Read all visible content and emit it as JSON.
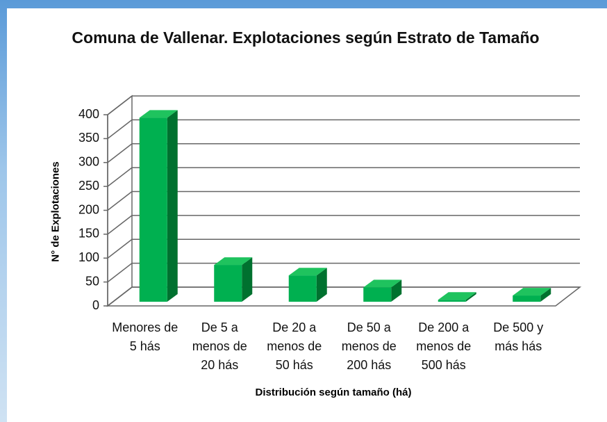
{
  "chart_data": {
    "type": "bar3d",
    "title": "Comuna de Vallenar. Explotaciones según Estrato de Tamaño",
    "x_label": "Distribución según tamaño (há)",
    "y_label": "N° de Explotaciones",
    "categories": [
      "Menores de 5 hás",
      "De 5 a menos de 20 hás",
      "De 20 a menos de 50 hás",
      "De 50 a menos de 200 hás",
      "De 200 a menos de 500 hás",
      "De 500 y más hás"
    ],
    "values": [
      385,
      77,
      55,
      30,
      4,
      13
    ],
    "color": "#00b050",
    "ylim": [
      0,
      400
    ],
    "yticks": [
      0,
      50,
      100,
      150,
      200,
      250,
      300,
      350,
      400
    ],
    "grid": true
  }
}
